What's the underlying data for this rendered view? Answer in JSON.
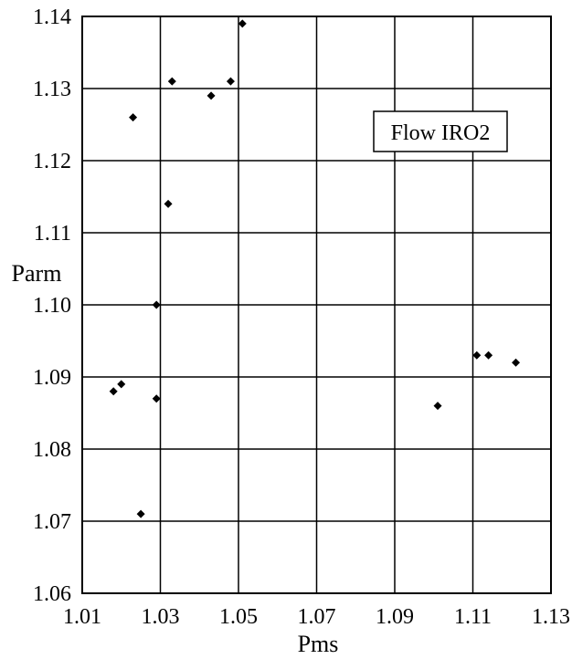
{
  "chart_data": {
    "type": "scatter",
    "title": "",
    "xlabel": "Pms",
    "ylabel": "Parm",
    "xlim": [
      1.01,
      1.13
    ],
    "ylim": [
      1.06,
      1.14
    ],
    "grid": true,
    "x_ticks": [
      "1.01",
      "1.03",
      "1.05",
      "1.07",
      "1.09",
      "1.11",
      "1.13"
    ],
    "x_tick_values": [
      1.01,
      1.03,
      1.05,
      1.07,
      1.09,
      1.11,
      1.13
    ],
    "y_ticks": [
      "1.06",
      "1.07",
      "1.08",
      "1.09",
      "1.10",
      "1.11",
      "1.12",
      "1.13",
      "1.14"
    ],
    "y_tick_values": [
      1.06,
      1.07,
      1.08,
      1.09,
      1.1,
      1.11,
      1.12,
      1.13,
      1.14
    ],
    "legend_label": "Flow IRO2",
    "legend_position": "top-right",
    "series": [
      {
        "name": "Flow IRO2",
        "marker": "diamond",
        "color": "#000000",
        "points": [
          {
            "x": 1.051,
            "y": 1.139
          },
          {
            "x": 1.033,
            "y": 1.131
          },
          {
            "x": 1.048,
            "y": 1.131
          },
          {
            "x": 1.043,
            "y": 1.129
          },
          {
            "x": 1.023,
            "y": 1.126
          },
          {
            "x": 1.032,
            "y": 1.114
          },
          {
            "x": 1.029,
            "y": 1.1
          },
          {
            "x": 1.02,
            "y": 1.089
          },
          {
            "x": 1.018,
            "y": 1.088
          },
          {
            "x": 1.029,
            "y": 1.087
          },
          {
            "x": 1.025,
            "y": 1.071
          },
          {
            "x": 1.101,
            "y": 1.086
          },
          {
            "x": 1.111,
            "y": 1.093
          },
          {
            "x": 1.114,
            "y": 1.093
          },
          {
            "x": 1.121,
            "y": 1.092
          }
        ]
      }
    ]
  }
}
